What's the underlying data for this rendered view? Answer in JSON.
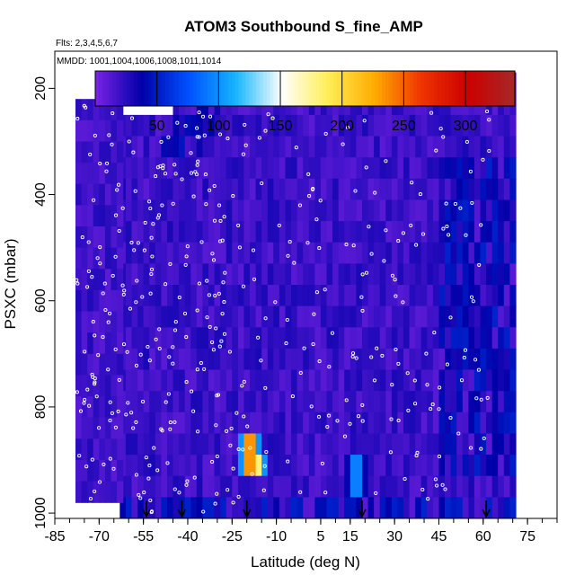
{
  "chart_data": {
    "type": "heatmap",
    "title": "ATOM3 Southbound S_fine_AMP",
    "flights_label": "Flts: 2,3,4,5,6,7",
    "mmdd_label": "MMDD: 1001,1004,1006,1008,1011,1014",
    "xlabel": "Latitude (deg N)",
    "ylabel": "PSXC (mbar)",
    "xlim": [
      -85,
      85
    ],
    "ylim": [
      1010,
      130
    ],
    "x_ticks": [
      -85,
      -70,
      -55,
      -40,
      -25,
      -10,
      5,
      15,
      30,
      45,
      60,
      75
    ],
    "y_ticks": [
      200,
      400,
      600,
      800,
      1000
    ],
    "colorbar": {
      "range": [
        0,
        340
      ],
      "ticks": [
        50,
        100,
        150,
        200,
        250,
        300
      ],
      "colors": [
        "#7a23e6",
        "#0000a8",
        "#0050ff",
        "#14b4ff",
        "#ffffff",
        "#ffee55",
        "#ffaa00",
        "#ee3300",
        "#cc0000",
        "#a52828"
      ]
    },
    "arrows_latitude": [
      -54,
      -42,
      -20,
      19,
      61
    ],
    "data_extent": {
      "lat": [
        -63,
        71
      ],
      "pressure": [
        170,
        1000
      ]
    },
    "hotspots": [
      {
        "lat": -20,
        "pressure_range": [
          820,
          910
        ],
        "value": 300
      },
      {
        "lat": -17,
        "pressure_range": [
          870,
          910
        ],
        "value": 180
      },
      {
        "lat": 16,
        "pressure_range": [
          870,
          950
        ],
        "value": 120
      }
    ],
    "value_background": 10,
    "low_value_regions": [
      {
        "lat": [
          45,
          71
        ],
        "pressure": [
          300,
          900
        ],
        "value": 45
      },
      {
        "lat": [
          -50,
          -30
        ],
        "pressure": [
          200,
          300
        ],
        "value": 40
      }
    ]
  }
}
